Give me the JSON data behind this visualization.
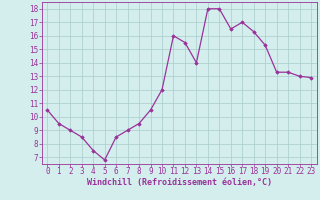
{
  "x": [
    0,
    1,
    2,
    3,
    4,
    5,
    6,
    7,
    8,
    9,
    10,
    11,
    12,
    13,
    14,
    15,
    16,
    17,
    18,
    19,
    20,
    21,
    22,
    23
  ],
  "y": [
    10.5,
    9.5,
    9.0,
    8.5,
    7.5,
    6.8,
    8.5,
    9.0,
    9.5,
    10.5,
    12.0,
    16.0,
    15.5,
    14.0,
    18.0,
    18.0,
    16.5,
    17.0,
    16.3,
    15.3,
    13.3,
    13.3,
    13.0,
    12.9
  ],
  "line_color": "#993399",
  "marker": "D",
  "marker_size": 1.8,
  "bg_color": "#d4eeee",
  "grid_color": "#aacccc",
  "xlabel": "Windchill (Refroidissement éolien,°C)",
  "ylim": [
    6.5,
    18.5
  ],
  "xlim": [
    -0.5,
    23.5
  ],
  "yticks": [
    7,
    8,
    9,
    10,
    11,
    12,
    13,
    14,
    15,
    16,
    17,
    18
  ],
  "xticks": [
    0,
    1,
    2,
    3,
    4,
    5,
    6,
    7,
    8,
    9,
    10,
    11,
    12,
    13,
    14,
    15,
    16,
    17,
    18,
    19,
    20,
    21,
    22,
    23
  ],
  "tick_label_fontsize": 5.5,
  "xlabel_fontsize": 6.0,
  "line_width": 0.9
}
